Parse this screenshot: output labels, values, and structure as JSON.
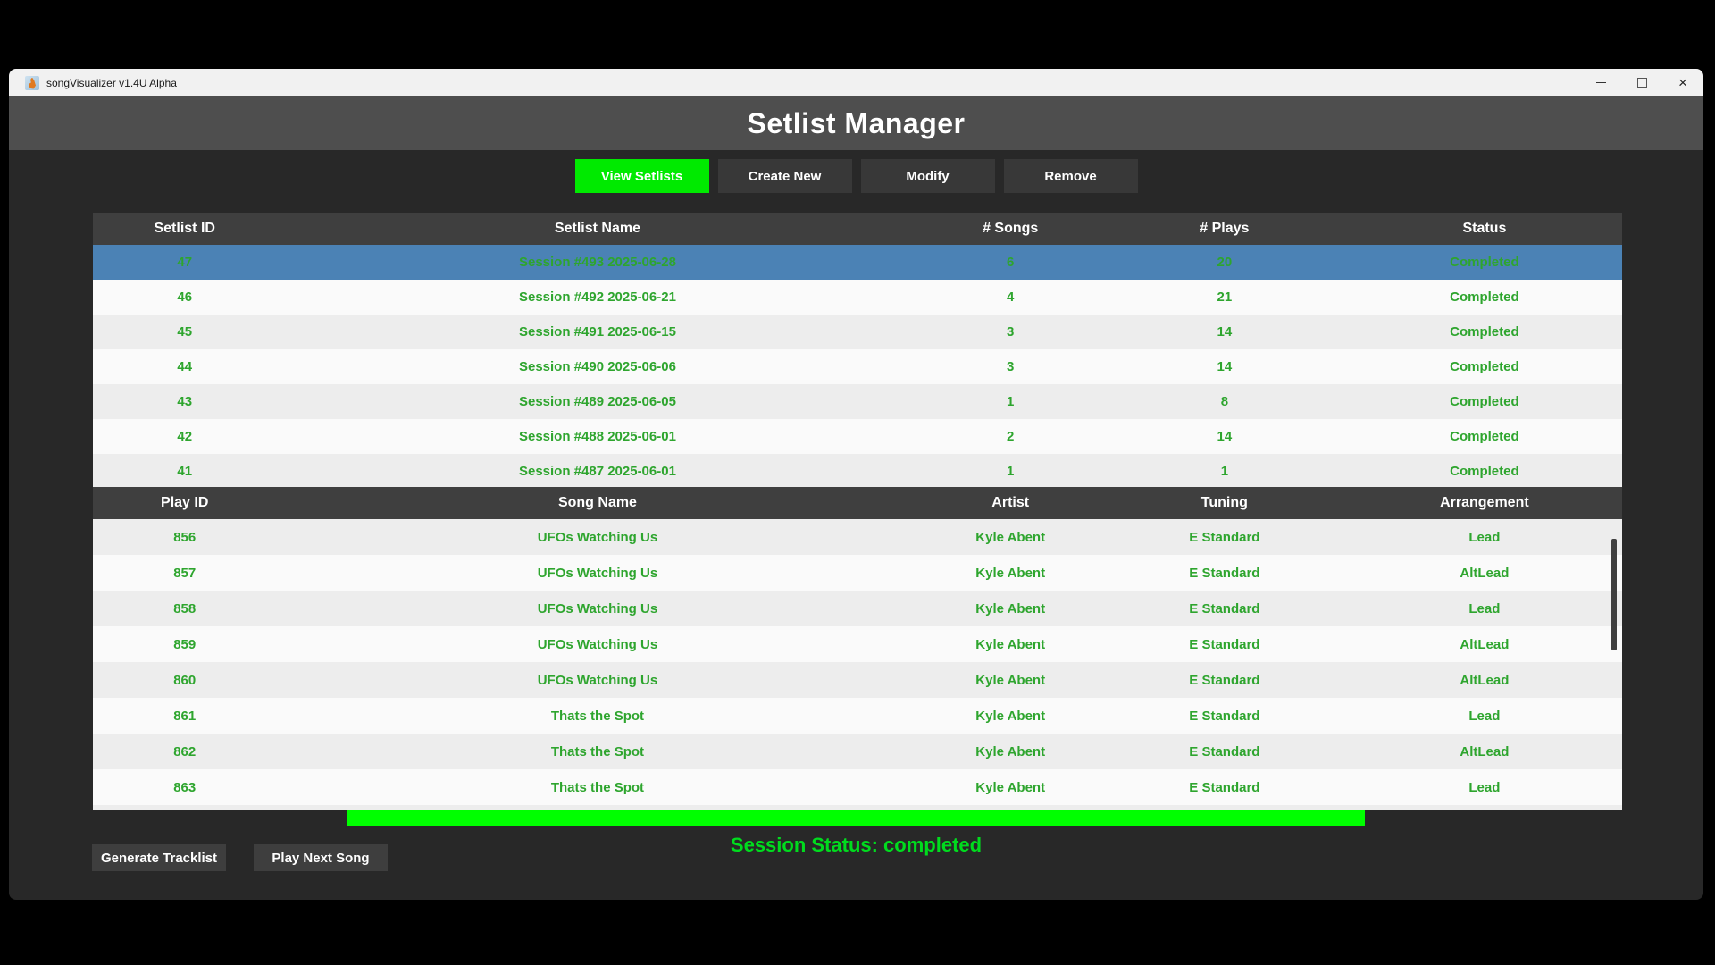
{
  "window": {
    "title": "songVisualizer v1.4U Alpha",
    "controls": {
      "minimize": "minimize",
      "maximize": "maximize",
      "close": "close"
    }
  },
  "header": {
    "title": "Setlist Manager"
  },
  "tabs": [
    {
      "label": "View Setlists",
      "active": true
    },
    {
      "label": "Create New",
      "active": false
    },
    {
      "label": "Modify",
      "active": false
    },
    {
      "label": "Remove",
      "active": false
    }
  ],
  "setlist_table": {
    "columns": [
      "Setlist ID",
      "Setlist Name",
      "# Songs",
      "# Plays",
      "Status"
    ],
    "selected_index": 0,
    "rows": [
      [
        "47",
        "Session #493 2025-06-28",
        "6",
        "20",
        "Completed"
      ],
      [
        "46",
        "Session #492 2025-06-21",
        "4",
        "21",
        "Completed"
      ],
      [
        "45",
        "Session #491 2025-06-15",
        "3",
        "14",
        "Completed"
      ],
      [
        "44",
        "Session #490 2025-06-06",
        "3",
        "14",
        "Completed"
      ],
      [
        "43",
        "Session #489 2025-06-05",
        "1",
        "8",
        "Completed"
      ],
      [
        "42",
        "Session #488 2025-06-01",
        "2",
        "14",
        "Completed"
      ],
      [
        "41",
        "Session #487 2025-06-01",
        "1",
        "1",
        "Completed"
      ]
    ]
  },
  "plays_table": {
    "columns": [
      "Play ID",
      "Song Name",
      "Artist",
      "Tuning",
      "Arrangement"
    ],
    "rows": [
      [
        "856",
        "UFOs Watching Us",
        "Kyle Abent",
        "E Standard",
        "Lead"
      ],
      [
        "857",
        "UFOs Watching Us",
        "Kyle Abent",
        "E Standard",
        "AltLead"
      ],
      [
        "858",
        "UFOs Watching Us",
        "Kyle Abent",
        "E Standard",
        "Lead"
      ],
      [
        "859",
        "UFOs Watching Us",
        "Kyle Abent",
        "E Standard",
        "AltLead"
      ],
      [
        "860",
        "UFOs Watching Us",
        "Kyle Abent",
        "E Standard",
        "AltLead"
      ],
      [
        "861",
        "Thats the Spot",
        "Kyle Abent",
        "E Standard",
        "Lead"
      ],
      [
        "862",
        "Thats the Spot",
        "Kyle Abent",
        "E Standard",
        "AltLead"
      ],
      [
        "863",
        "Thats the Spot",
        "Kyle Abent",
        "E Standard",
        "Lead"
      ],
      [
        "",
        "",
        "",
        "",
        ""
      ]
    ]
  },
  "footer": {
    "status_text": "Session Status: completed",
    "buttons": [
      "Generate Tracklist",
      "Play Next Song"
    ]
  },
  "colors": {
    "tab_green": "#00ea00",
    "bar_green": "#00ff00",
    "status_green": "#00dc1e",
    "table_green": "#2ea52e",
    "selected_blue": "#4b82b5"
  }
}
